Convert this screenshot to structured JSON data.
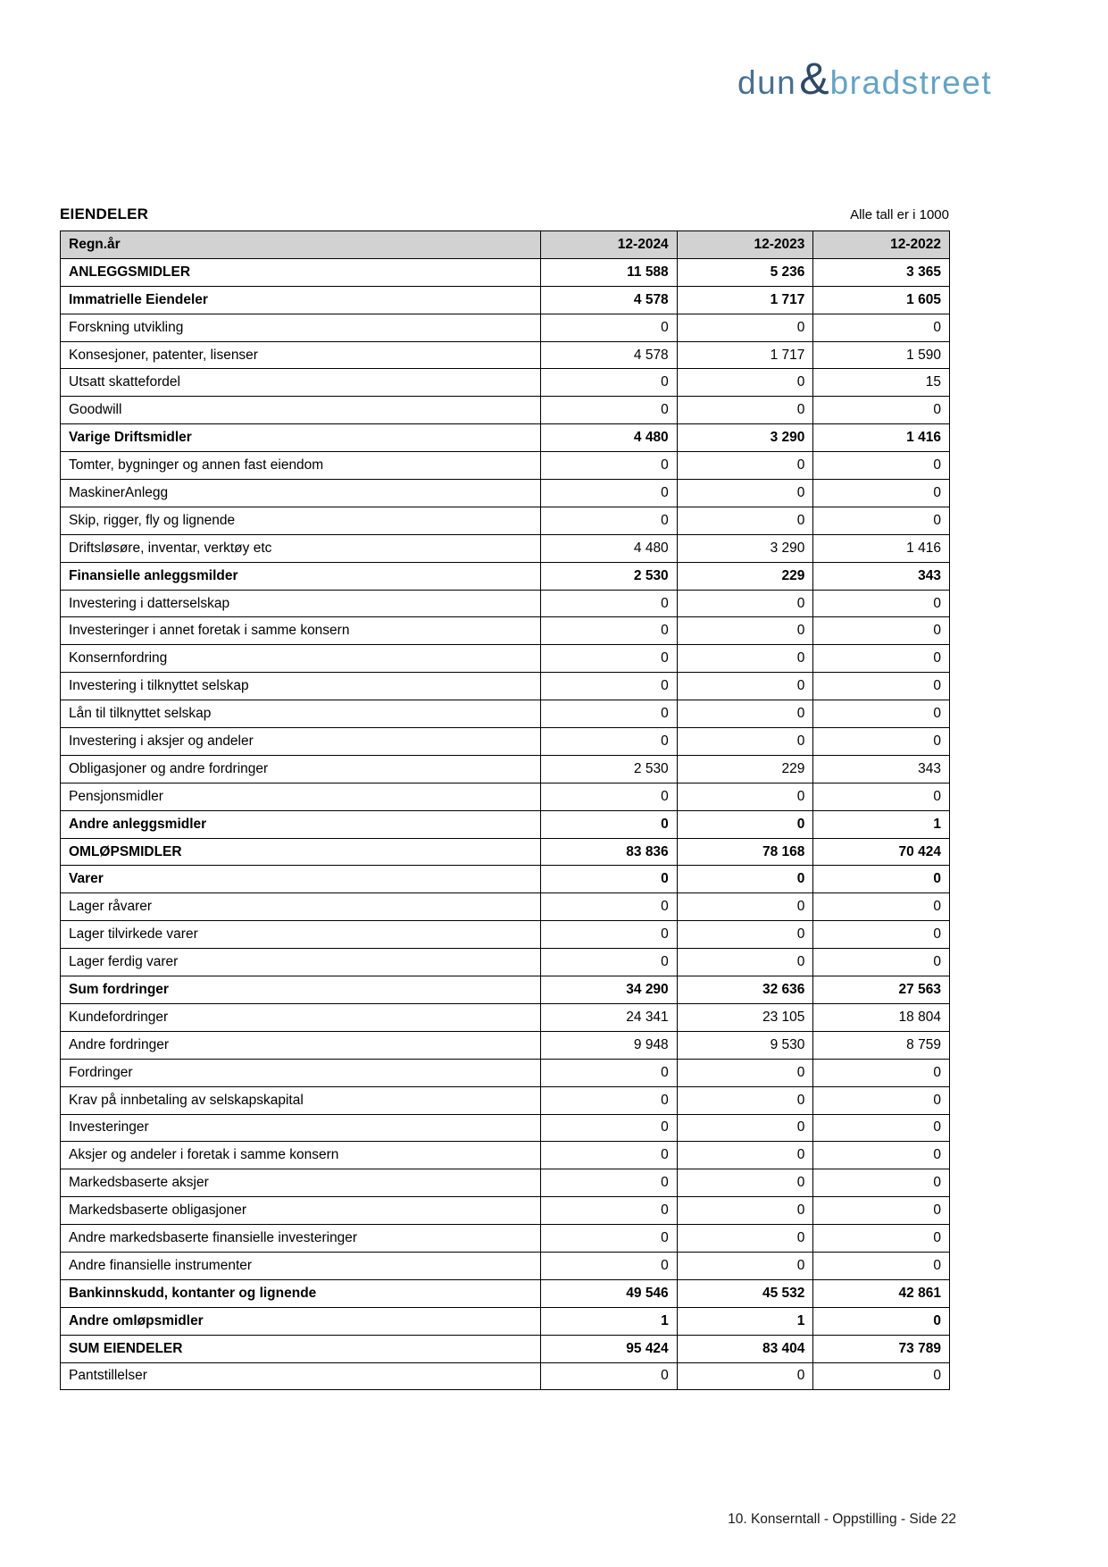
{
  "logo": {
    "part1": "dun",
    "amp": "&",
    "part2": "bradstreet",
    "part1_color": "#4a7090",
    "amp_color": "#2e4a66",
    "part2_color": "#66a3c3"
  },
  "page": {
    "title": "EIENDELER",
    "units_note": "Alle tall er i 1000",
    "footer": "10. Konserntall - Oppstilling - Side 22"
  },
  "table": {
    "header_bg": "#d2d2d2",
    "header": {
      "label": "Regn.år",
      "cols": [
        "12-2024",
        "12-2023",
        "12-2022"
      ]
    },
    "rows": [
      {
        "label": "ANLEGGSMIDLER",
        "bold": true,
        "values": [
          "11 588",
          "5 236",
          "3 365"
        ]
      },
      {
        "label": "Immatrielle Eiendeler",
        "bold": true,
        "values": [
          "4 578",
          "1 717",
          "1 605"
        ]
      },
      {
        "label": "Forskning utvikling",
        "bold": false,
        "values": [
          "0",
          "0",
          "0"
        ]
      },
      {
        "label": "Konsesjoner, patenter, lisenser",
        "bold": false,
        "values": [
          "4 578",
          "1 717",
          "1 590"
        ]
      },
      {
        "label": "Utsatt skattefordel",
        "bold": false,
        "values": [
          "0",
          "0",
          "15"
        ]
      },
      {
        "label": "Goodwill",
        "bold": false,
        "values": [
          "0",
          "0",
          "0"
        ]
      },
      {
        "label": "Varige Driftsmidler",
        "bold": true,
        "values": [
          "4 480",
          "3 290",
          "1 416"
        ]
      },
      {
        "label": "Tomter, bygninger og annen fast eiendom",
        "bold": false,
        "values": [
          "0",
          "0",
          "0"
        ]
      },
      {
        "label": "MaskinerAnlegg",
        "bold": false,
        "values": [
          "0",
          "0",
          "0"
        ]
      },
      {
        "label": "Skip, rigger, fly og lignende",
        "bold": false,
        "values": [
          "0",
          "0",
          "0"
        ]
      },
      {
        "label": "Driftsløsøre, inventar, verktøy etc",
        "bold": false,
        "values": [
          "4 480",
          "3 290",
          "1 416"
        ]
      },
      {
        "label": "Finansielle anleggsmilder",
        "bold": true,
        "values": [
          "2 530",
          "229",
          "343"
        ]
      },
      {
        "label": "Investering i datterselskap",
        "bold": false,
        "values": [
          "0",
          "0",
          "0"
        ]
      },
      {
        "label": "Investeringer i annet foretak i samme konsern",
        "bold": false,
        "values": [
          "0",
          "0",
          "0"
        ]
      },
      {
        "label": "Konsernfordring",
        "bold": false,
        "values": [
          "0",
          "0",
          "0"
        ]
      },
      {
        "label": "Investering i tilknyttet selskap",
        "bold": false,
        "values": [
          "0",
          "0",
          "0"
        ]
      },
      {
        "label": "Lån til tilknyttet selskap",
        "bold": false,
        "values": [
          "0",
          "0",
          "0"
        ]
      },
      {
        "label": "Investering i aksjer og andeler",
        "bold": false,
        "values": [
          "0",
          "0",
          "0"
        ]
      },
      {
        "label": "Obligasjoner og andre fordringer",
        "bold": false,
        "values": [
          "2 530",
          "229",
          "343"
        ]
      },
      {
        "label": "Pensjonsmidler",
        "bold": false,
        "values": [
          "0",
          "0",
          "0"
        ]
      },
      {
        "label": "Andre anleggsmidler",
        "bold": true,
        "values": [
          "0",
          "0",
          "1"
        ]
      },
      {
        "label": "OMLØPSMIDLER",
        "bold": true,
        "values": [
          "83 836",
          "78 168",
          "70 424"
        ]
      },
      {
        "label": "Varer",
        "bold": true,
        "values": [
          "0",
          "0",
          "0"
        ]
      },
      {
        "label": "Lager råvarer",
        "bold": false,
        "values": [
          "0",
          "0",
          "0"
        ]
      },
      {
        "label": "Lager tilvirkede varer",
        "bold": false,
        "values": [
          "0",
          "0",
          "0"
        ]
      },
      {
        "label": "Lager ferdig varer",
        "bold": false,
        "values": [
          "0",
          "0",
          "0"
        ]
      },
      {
        "label": "Sum fordringer",
        "bold": true,
        "values": [
          "34 290",
          "32 636",
          "27 563"
        ]
      },
      {
        "label": "Kundefordringer",
        "bold": false,
        "values": [
          "24 341",
          "23 105",
          "18 804"
        ]
      },
      {
        "label": "Andre fordringer",
        "bold": false,
        "values": [
          "9 948",
          "9 530",
          "8 759"
        ]
      },
      {
        "label": "Fordringer",
        "bold": false,
        "values": [
          "0",
          "0",
          "0"
        ]
      },
      {
        "label": "Krav på innbetaling av selskapskapital",
        "bold": false,
        "values": [
          "0",
          "0",
          "0"
        ]
      },
      {
        "label": "Investeringer",
        "bold": false,
        "values": [
          "0",
          "0",
          "0"
        ]
      },
      {
        "label": "Aksjer og andeler i foretak i samme konsern",
        "bold": false,
        "values": [
          "0",
          "0",
          "0"
        ]
      },
      {
        "label": "Markedsbaserte aksjer",
        "bold": false,
        "values": [
          "0",
          "0",
          "0"
        ]
      },
      {
        "label": "Markedsbaserte obligasjoner",
        "bold": false,
        "values": [
          "0",
          "0",
          "0"
        ]
      },
      {
        "label": "Andre markedsbaserte finansielle investeringer",
        "bold": false,
        "values": [
          "0",
          "0",
          "0"
        ]
      },
      {
        "label": "Andre finansielle instrumenter",
        "bold": false,
        "values": [
          "0",
          "0",
          "0"
        ]
      },
      {
        "label": "Bankinnskudd, kontanter og lignende",
        "bold": true,
        "values": [
          "49 546",
          "45 532",
          "42 861"
        ]
      },
      {
        "label": "Andre omløpsmidler",
        "bold": true,
        "values": [
          "1",
          "1",
          "0"
        ]
      },
      {
        "label": "SUM EIENDELER",
        "bold": true,
        "values": [
          "95 424",
          "83 404",
          "73 789"
        ]
      },
      {
        "label": "Pantstillelser",
        "bold": false,
        "values": [
          "0",
          "0",
          "0"
        ]
      }
    ]
  }
}
